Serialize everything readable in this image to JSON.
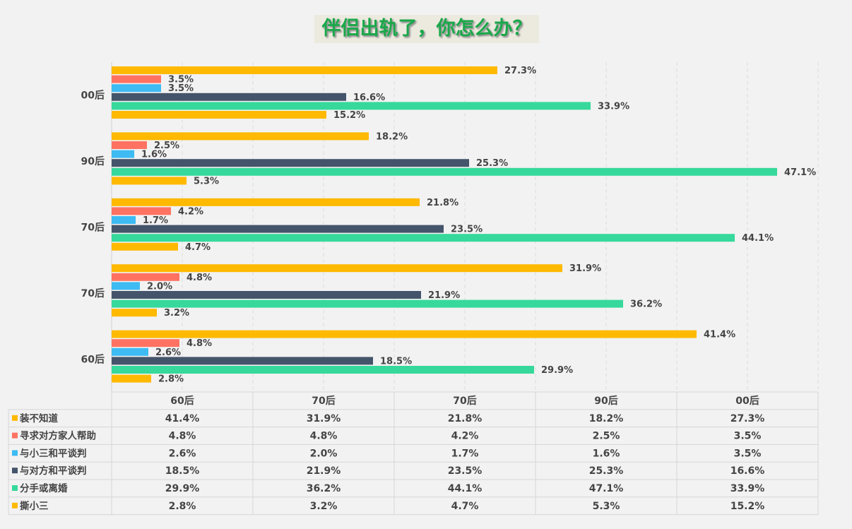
{
  "chart_data": {
    "type": "bar",
    "orientation": "horizontal",
    "title": "伴侣出轨了，你怎么办？",
    "categories": [
      "60后",
      "70后",
      "70后",
      "90后",
      "00后"
    ],
    "xlim": [
      0,
      50
    ],
    "grid": true,
    "legend": "data-table-bottom",
    "series": [
      {
        "name": "装不知道",
        "color": "#FFB900",
        "values": [
          41.4,
          31.9,
          21.8,
          18.2,
          27.3
        ]
      },
      {
        "name": "寻求对方家人帮助",
        "color": "#FF7262",
        "values": [
          4.8,
          4.8,
          4.2,
          2.5,
          3.5
        ]
      },
      {
        "name": "与小三和平谈判",
        "color": "#3DBBF2",
        "values": [
          2.6,
          2.0,
          1.7,
          1.6,
          3.5
        ]
      },
      {
        "name": "与对方和平谈判",
        "color": "#44546A",
        "values": [
          18.5,
          21.9,
          23.5,
          25.3,
          16.6
        ]
      },
      {
        "name": "分手或离婚",
        "color": "#36D99B",
        "values": [
          29.9,
          36.2,
          44.1,
          47.1,
          33.9
        ]
      },
      {
        "name": "撕小三",
        "color": "#FFB900",
        "values": [
          2.8,
          3.2,
          4.7,
          5.3,
          15.2
        ]
      }
    ]
  }
}
